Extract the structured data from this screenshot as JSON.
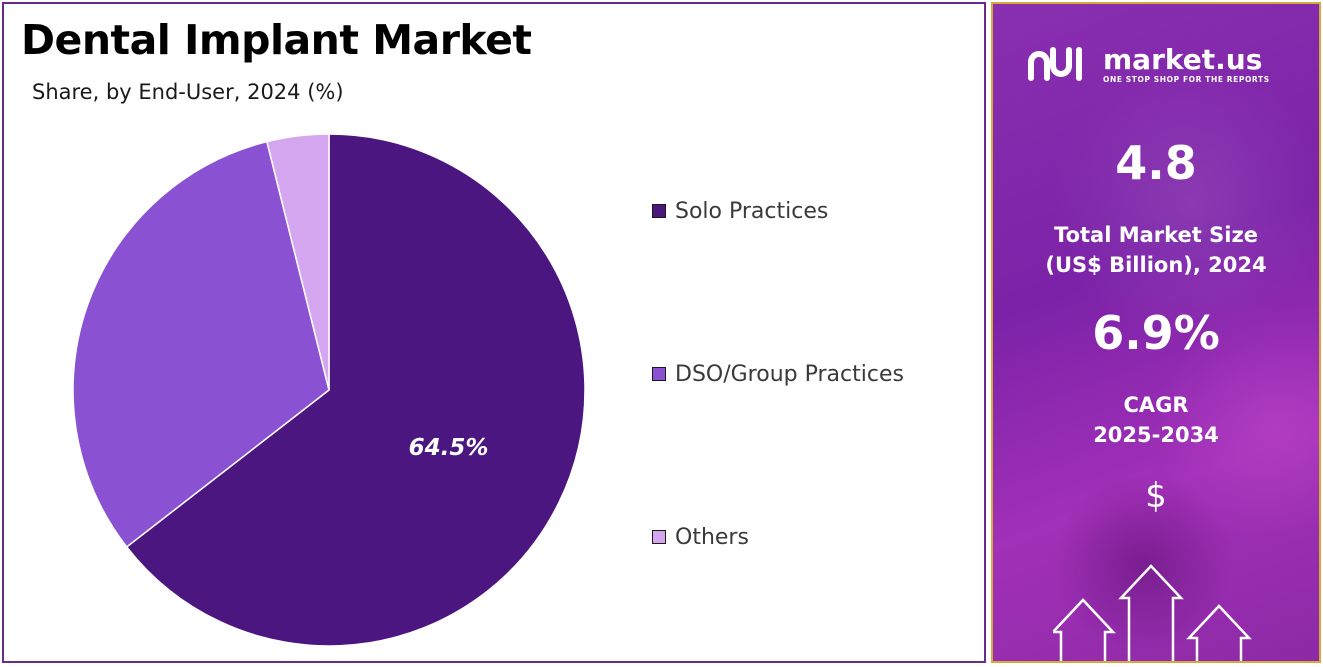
{
  "title": "Dental Implant Market",
  "subtitle": "Share, by End-User, 2024 (%)",
  "chart_data": {
    "type": "pie",
    "title": "Dental Implant Market",
    "subtitle": "Share, by End-User, 2024 (%)",
    "categories": [
      "Solo Practices",
      "DSO/Group Practices",
      "Others"
    ],
    "values": [
      64.5,
      31.6,
      3.9
    ],
    "colors": [
      "#4b167f",
      "#8a52d3",
      "#d4a6f0"
    ],
    "data_labels": [
      "64.5%",
      "",
      ""
    ],
    "legend_position": "right"
  },
  "sidebar": {
    "brand_name": "market.us",
    "brand_tagline": "ONE STOP SHOP FOR THE REPORTS",
    "market_size_value": "4.8",
    "market_size_label_line1": "Total Market Size",
    "market_size_label_line2": "(US$ Billion), 2024",
    "cagr_value": "6.9%",
    "cagr_label_line1": "CAGR",
    "cagr_label_line2": "2025-2034",
    "dollar_symbol": "$"
  },
  "icons": [
    "market-us-logo-icon",
    "dollar-icon",
    "up-arrow-icon"
  ]
}
